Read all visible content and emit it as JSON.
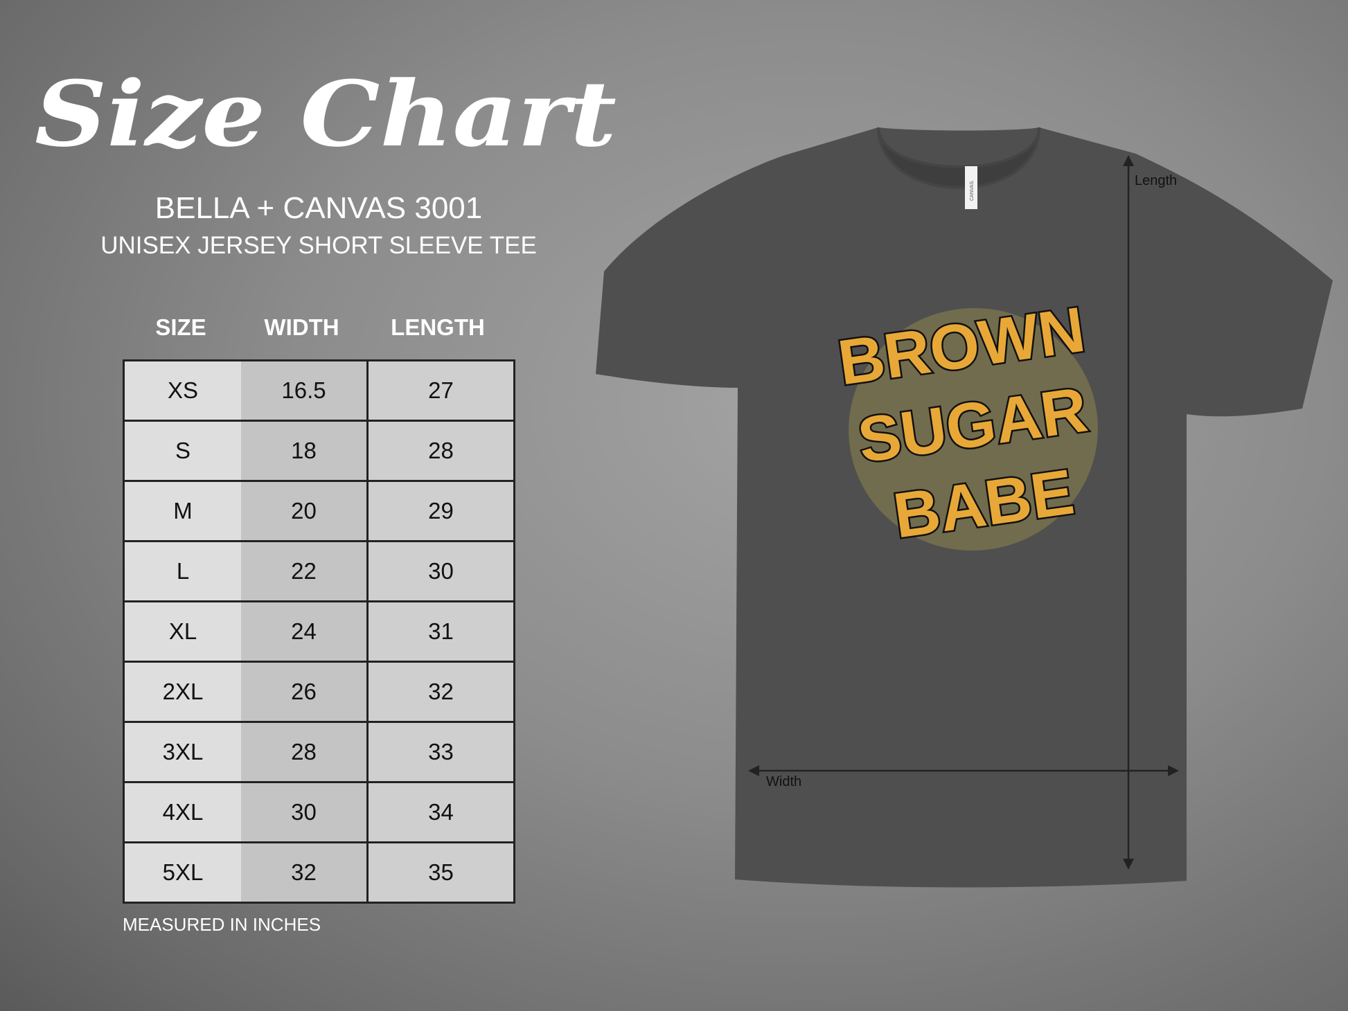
{
  "header": {
    "title": "Size Chart",
    "brand": "BELLA + CANVAS 3001",
    "subtitle": "UNISEX JERSEY SHORT SLEEVE TEE"
  },
  "table": {
    "columns": [
      "SIZE",
      "WIDTH",
      "LENGTH"
    ],
    "rows": [
      [
        "XS",
        "16.5",
        "27"
      ],
      [
        "S",
        "18",
        "28"
      ],
      [
        "M",
        "20",
        "29"
      ],
      [
        "L",
        "22",
        "30"
      ],
      [
        "XL",
        "24",
        "31"
      ],
      [
        "2XL",
        "26",
        "32"
      ],
      [
        "3XL",
        "28",
        "33"
      ],
      [
        "4XL",
        "30",
        "34"
      ],
      [
        "5XL",
        "32",
        "35"
      ]
    ],
    "note": "MEASURED IN INCHES"
  },
  "shirt": {
    "color": "#4f4f4f",
    "tag_text": "CANVAS.",
    "design_lines": [
      "BROWN",
      "SUGAR",
      "BABE"
    ],
    "design_color": "#e8a838",
    "length_label": "Length",
    "width_label": "Width"
  }
}
